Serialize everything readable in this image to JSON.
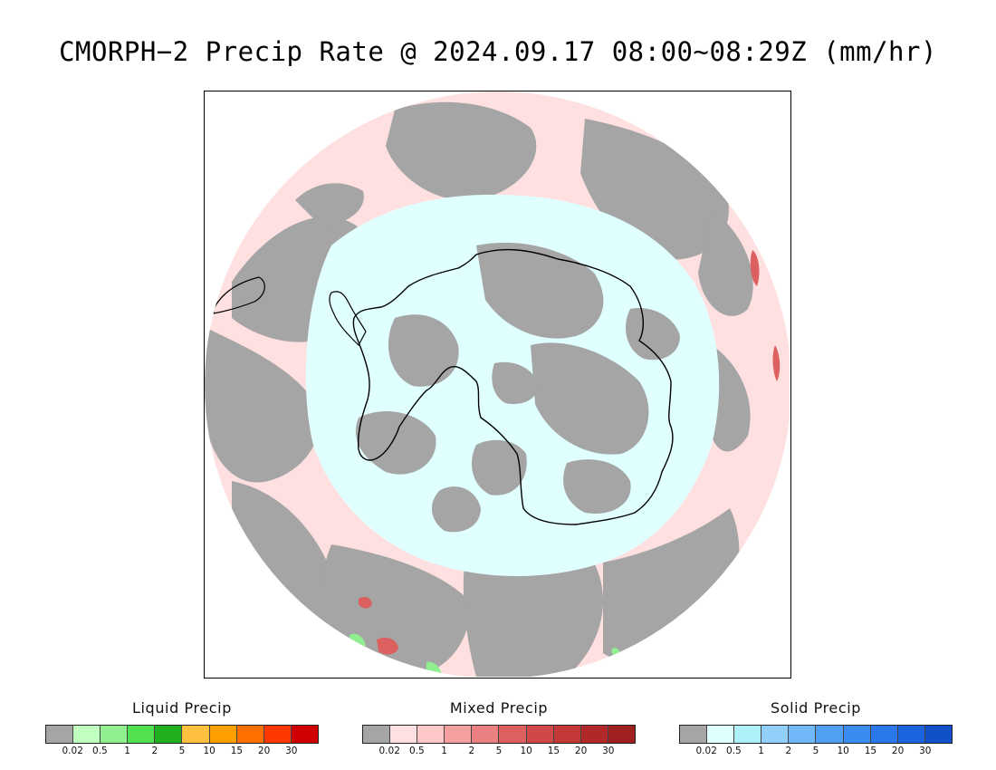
{
  "title": "CMORPH−2 Precip Rate @ 2024.09.17 08:00∼08:29Z (mm/hr)",
  "map": {
    "projection": "south-polar-stereographic",
    "region": "Antarctica / Southern Ocean",
    "background_colors": {
      "no_precip_gray": "#a5a5a5",
      "mixed_light": "#ffe0e0",
      "solid_light": "#e0ffff",
      "land_outline": "#000000"
    }
  },
  "legends": {
    "liquid": {
      "title": "Liquid Precip",
      "colors": [
        "#a5a5a5",
        "#c0ffc0",
        "#90f090",
        "#50e050",
        "#20b020",
        "#ffc040",
        "#ffa000",
        "#ff7000",
        "#ff3800",
        "#d00000"
      ],
      "ticks": [
        "0.02",
        "0.5",
        "1",
        "2",
        "5",
        "10",
        "15",
        "20",
        "30"
      ]
    },
    "mixed": {
      "title": "Mixed Precip",
      "colors": [
        "#a5a5a5",
        "#ffe0e0",
        "#ffc8c8",
        "#f4a0a0",
        "#ea8080",
        "#dc6060",
        "#d04848",
        "#c43838",
        "#b02828",
        "#a02020"
      ],
      "ticks": [
        "0.02",
        "0.5",
        "1",
        "2",
        "5",
        "10",
        "15",
        "20",
        "30"
      ]
    },
    "solid": {
      "title": "Solid Precip",
      "colors": [
        "#a5a5a5",
        "#e0ffff",
        "#b0f0f8",
        "#90d0fa",
        "#70b8f8",
        "#50a0f4",
        "#3a8cf0",
        "#2a78ec",
        "#1a64e0",
        "#1050c8"
      ],
      "ticks": [
        "0.02",
        "0.5",
        "1",
        "2",
        "5",
        "10",
        "15",
        "20",
        "30"
      ]
    }
  }
}
